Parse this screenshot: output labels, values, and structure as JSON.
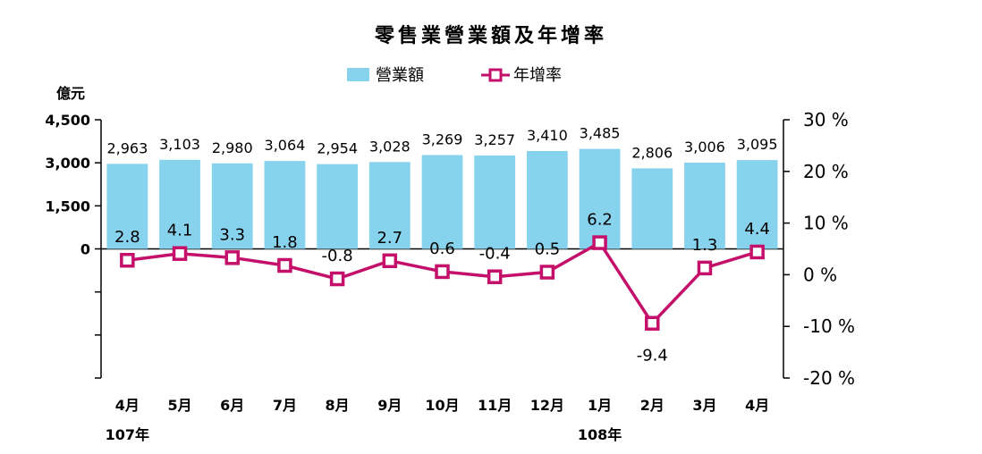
{
  "chart_data": {
    "type": "bar",
    "title": "零售業營業額及年增率",
    "categories": [
      "4月",
      "5月",
      "6月",
      "7月",
      "8月",
      "9月",
      "10月",
      "11月",
      "12月",
      "1月",
      "2月",
      "3月",
      "4月"
    ],
    "year_labels": [
      {
        "index": 0,
        "label": "107年"
      },
      {
        "index": 9,
        "label": "108年"
      }
    ],
    "ylabel_left": "億元",
    "series": [
      {
        "name": "營業額",
        "type": "bar",
        "axis": "left",
        "color": "#87d3ee",
        "values": [
          2963,
          3103,
          2980,
          3064,
          2954,
          3028,
          3269,
          3257,
          3410,
          3485,
          2806,
          3006,
          3095
        ],
        "labels": [
          "2,963",
          "3,103",
          "2,980",
          "3,064",
          "2,954",
          "3,028",
          "3,269",
          "3,257",
          "3,410",
          "3,485",
          "2,806",
          "3,006",
          "3,095"
        ]
      },
      {
        "name": "年增率",
        "type": "line",
        "axis": "right",
        "color": "#c4106a",
        "values": [
          2.8,
          4.1,
          3.3,
          1.8,
          -0.8,
          2.7,
          0.6,
          -0.4,
          0.5,
          6.2,
          -9.4,
          1.3,
          4.4
        ],
        "labels": [
          "2.8",
          "4.1",
          "3.3",
          "1.8",
          "-0.8",
          "2.7",
          "0.6",
          "-0.4",
          "0.5",
          "6.2",
          "-9.4",
          "1.3",
          "4.4"
        ]
      }
    ],
    "left_axis": {
      "min": -4500,
      "max": 4500,
      "ticks": [
        4500,
        3000,
        1500,
        0
      ],
      "tick_labels": [
        "4,500",
        "3,000",
        "1,500",
        "0"
      ]
    },
    "right_axis": {
      "min": -20,
      "max": 30,
      "ticks": [
        30,
        20,
        10,
        0,
        -10,
        -20
      ],
      "tick_labels": [
        "30 %",
        "20 %",
        "10 %",
        "0 %",
        "-10 %",
        "-20 %"
      ]
    },
    "legend_position": "top-center",
    "grid": false
  }
}
